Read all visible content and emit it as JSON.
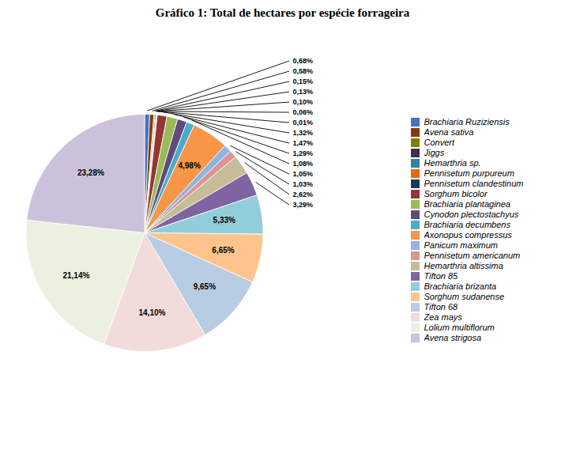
{
  "chart_data": {
    "type": "pie",
    "title": "Gráfico 1: Total de hectares por espécie forrageira",
    "categories": [
      "Brachiaria Ruziziensis",
      "Avena sativa",
      "Convert",
      "Jiggs",
      "Hemarthria sp.",
      "Pennisetum purpureum",
      "Pennisetum clandestinum",
      "Sorghum bicolor",
      "Brachiaria plantaginea",
      "Cynodon plectostachyus",
      "Brachiaria decumbens",
      "Axonopus compressus",
      "Panicum maximum",
      "Pennisetum americanum",
      "Hemarthria altissima",
      "Tifton 85",
      "Brachiaria brizanta",
      "Sorghum sudanense",
      "Tifton 68",
      "Zea mays",
      "Lolium multiflorum",
      "Avena strigosa"
    ],
    "values": [
      0.68,
      0.58,
      0.15,
      0.13,
      0.1,
      0.06,
      0.01,
      1.32,
      1.47,
      1.29,
      1.08,
      4.98,
      1.05,
      1.03,
      2.62,
      3.29,
      5.33,
      6.65,
      9.65,
      14.1,
      21.14,
      23.28
    ],
    "value_labels": [
      "0,68%",
      "0,58%",
      "0,15%",
      "0,13%",
      "0,10%",
      "0,06%",
      "0,01%",
      "1,32%",
      "1,47%",
      "1,29%",
      "1,08%",
      "4,98%",
      "1,05%",
      "1,03%",
      "2,62%",
      "3,29%",
      "5,33%",
      "6,65%",
      "9,65%",
      "14,10%",
      "21,14%",
      "23,28%"
    ],
    "colors": [
      "#4472C4",
      "#843C0C",
      "#7F7F00",
      "#3F3151",
      "#31849B",
      "#E26B0A",
      "#17375E",
      "#963634",
      "#9BBB59",
      "#604A7B",
      "#4BACC6",
      "#F79646",
      "#8DB4E2",
      "#D99694",
      "#C4BD97",
      "#8064A2",
      "#92CDDC",
      "#FFC48C",
      "#B8CCE4",
      "#F2DCDB",
      "#EBF1DE",
      "#CCC1DA"
    ],
    "data_labels": true,
    "legend": "right"
  }
}
